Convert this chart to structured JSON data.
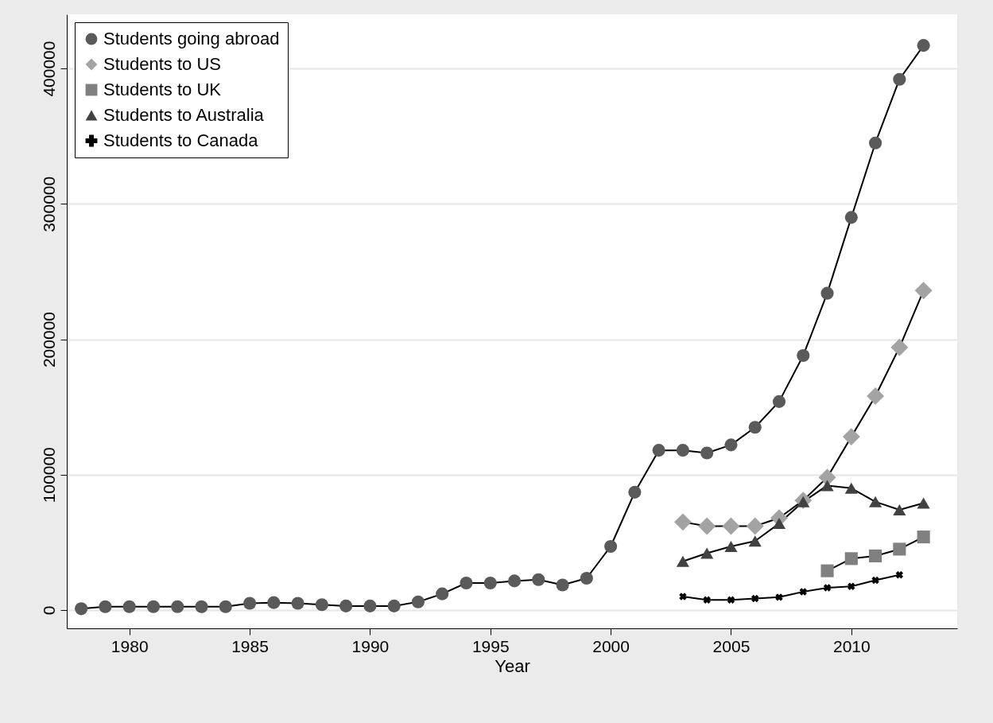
{
  "chart_data": {
    "type": "line",
    "xlabel": "Year",
    "x": [
      1978,
      1979,
      1980,
      1981,
      1982,
      1983,
      1984,
      1985,
      1986,
      1987,
      1988,
      1989,
      1990,
      1991,
      1992,
      1993,
      1994,
      1995,
      1996,
      1997,
      1998,
      1999,
      2000,
      2001,
      2002,
      2003,
      2004,
      2005,
      2006,
      2007,
      2008,
      2009,
      2010,
      2011,
      2012,
      2013
    ],
    "series": [
      {
        "name": "Students going abroad",
        "color": "#5a5a5a",
        "marker": "circle",
        "values": [
          1000,
          2500,
          2500,
          2500,
          2500,
          2500,
          2500,
          5000,
          5500,
          5000,
          4000,
          3000,
          3000,
          3000,
          6000,
          12000,
          20000,
          20000,
          21500,
          22500,
          18500,
          23500,
          47000,
          87000,
          118000,
          118000,
          116000,
          122000,
          135000,
          154000,
          188000,
          234000,
          290000,
          345000,
          392000,
          417000
        ]
      },
      {
        "name": "Students to US",
        "color": "#a3a3a3",
        "marker": "diamond",
        "x": [
          2003,
          2004,
          2005,
          2006,
          2007,
          2008,
          2009,
          2010,
          2011,
          2012,
          2013
        ],
        "values": [
          65000,
          62000,
          62000,
          62000,
          68000,
          81000,
          98000,
          128000,
          158000,
          194000,
          236000
        ]
      },
      {
        "name": "Students to UK",
        "color": "#808080",
        "marker": "square",
        "x": [
          2009,
          2010,
          2011,
          2012,
          2013
        ],
        "values": [
          29000,
          38000,
          40000,
          45000,
          54000
        ]
      },
      {
        "name": "Students to Australia",
        "color": "#424242",
        "marker": "triangle",
        "x": [
          2003,
          2004,
          2005,
          2006,
          2007,
          2008,
          2009,
          2010,
          2011,
          2012,
          2013
        ],
        "values": [
          36000,
          42000,
          47000,
          51000,
          64000,
          80000,
          92000,
          90000,
          80000,
          74000,
          79000
        ]
      },
      {
        "name": "Students to Canada",
        "color": "#000000",
        "marker": "cross",
        "x": [
          2003,
          2004,
          2005,
          2006,
          2007,
          2008,
          2009,
          2010,
          2011,
          2012
        ],
        "values": [
          10000,
          7500,
          7500,
          8500,
          9500,
          13500,
          16500,
          17500,
          22000,
          26000
        ]
      }
    ],
    "xlim": [
      1977.4,
      2014.4
    ],
    "xticks": [
      1980,
      1985,
      1990,
      1995,
      2000,
      2005,
      2010
    ],
    "ylim": [
      -13500,
      440000
    ],
    "yticks": [
      0,
      100000,
      200000,
      300000,
      400000
    ],
    "grid": "y",
    "legend": "top left",
    "line_style": "solid"
  }
}
